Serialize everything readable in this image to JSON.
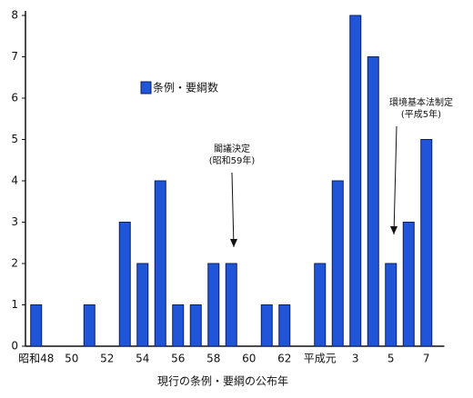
{
  "chart_data": {
    "type": "bar",
    "x_label": "現行の条例・要綱の公布年",
    "categories": [
      "昭和48",
      null,
      "50",
      null,
      "52",
      null,
      "54",
      null,
      "56",
      null,
      "58",
      null,
      "60",
      null,
      "62",
      null,
      "平成元",
      null,
      "3",
      null,
      "5",
      null,
      "7"
    ],
    "series": [
      {
        "name": "条例・要綱数",
        "color": "#1f55d6",
        "values": [
          1,
          0,
          0,
          1,
          0,
          3,
          2,
          4,
          1,
          1,
          2,
          2,
          0,
          1,
          1,
          0,
          2,
          4,
          8,
          7,
          2,
          3,
          5
        ]
      }
    ],
    "ylim": [
      0,
      8
    ],
    "yticks": [
      0,
      1,
      2,
      3,
      4,
      5,
      6,
      7,
      8
    ],
    "annotations": [
      [
        "閣議決定",
        "(昭和59年)"
      ],
      [
        "環境基本法制定",
        "(平成5年)"
      ]
    ]
  }
}
